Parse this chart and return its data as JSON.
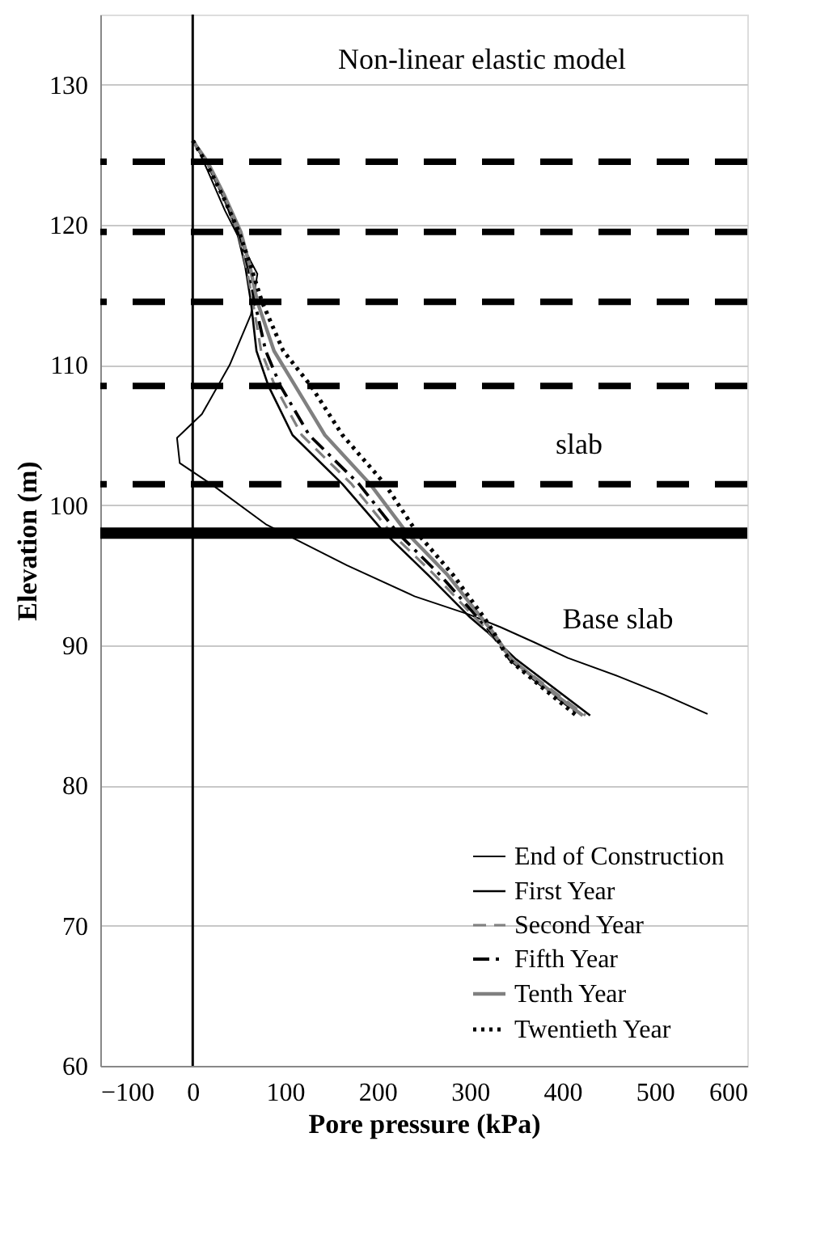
{
  "chart_data": {
    "type": "line",
    "xlabel": "Pore pressure (kPa)",
    "ylabel": "Elevation (m)",
    "annotations": [
      "Non-linear elastic model",
      "slab",
      "Base slab"
    ],
    "xlim": [
      -100,
      600
    ],
    "xticks": [
      -100,
      0,
      100,
      200,
      300,
      400,
      500,
      600
    ],
    "ylim": [
      60,
      135
    ],
    "yticks": [
      60,
      70,
      80,
      90,
      100,
      110,
      120,
      130
    ],
    "grid": "y",
    "legend": "bottom",
    "marker": "none",
    "ref_lines": [
      {
        "axis": "y",
        "value": 124.5,
        "color": "#000000",
        "line_style": "dashed"
      },
      {
        "axis": "y",
        "value": 119.5,
        "color": "#000000",
        "line_style": "dashed"
      },
      {
        "axis": "y",
        "value": 114.5,
        "color": "#000000",
        "line_style": "dashed"
      },
      {
        "axis": "y",
        "value": 108.5,
        "color": "#000000",
        "line_style": "dashed"
      },
      {
        "axis": "y",
        "value": 101.5,
        "color": "#000000",
        "line_style": "dashed"
      },
      {
        "axis": "y",
        "value": 98,
        "color": "#000000",
        "line_style": "solid"
      },
      {
        "axis": "x",
        "value": 0,
        "color": "#000000",
        "line_style": "solid"
      }
    ],
    "series": [
      {
        "name": "End of Construction",
        "color": "#000000",
        "line_style": "solid",
        "x": [
          2,
          35,
          62,
          70,
          63,
          40,
          10,
          -17,
          -14,
          20,
          80,
          167,
          240,
          299,
          333,
          370,
          406,
          460,
          509,
          557
        ],
        "values": [
          126,
          121,
          117.5,
          116.5,
          113.6,
          110,
          106.5,
          104.8,
          103,
          101.5,
          98.6,
          95.7,
          93.5,
          92.2,
          91.3,
          90.2,
          89.1,
          87.8,
          86.5,
          85.1
        ]
      },
      {
        "name": "First Year",
        "color": "#000000",
        "line_style": "solid",
        "x": [
          0,
          15,
          33,
          48,
          57,
          63,
          69,
          82,
          108,
          162,
          208,
          255,
          300,
          318,
          350,
          390,
          430
        ],
        "values": [
          126,
          124.5,
          122,
          119.5,
          117,
          114.5,
          111,
          108.5,
          105,
          101.5,
          98,
          95,
          92,
          91,
          89,
          87,
          85
        ]
      },
      {
        "name": "Second Year",
        "color": "#808080",
        "line_style": "dashed",
        "x": [
          0,
          15,
          33,
          49,
          58,
          65,
          74,
          89,
          118,
          172,
          215,
          262,
          305,
          320,
          345,
          385,
          425
        ],
        "values": [
          126,
          124.5,
          122,
          119.5,
          117,
          114.5,
          111,
          108.5,
          105,
          101.5,
          98,
          95,
          92,
          91,
          89,
          87,
          85
        ]
      },
      {
        "name": "Fifth Year",
        "color": "#000000",
        "line_style": "dashdot",
        "x": [
          0,
          15,
          34,
          50,
          60,
          67,
          79,
          95,
          126,
          180,
          222,
          268,
          308,
          322,
          343,
          380,
          420
        ],
        "values": [
          126,
          124.5,
          122,
          119.5,
          117,
          114.5,
          111,
          108.5,
          105,
          101.5,
          98,
          95,
          92,
          91,
          89,
          87,
          85
        ]
      },
      {
        "name": "Tenth Year",
        "color": "#808080",
        "line_style": "solid",
        "x": [
          0,
          16,
          35,
          52,
          62,
          70,
          88,
          111,
          143,
          192,
          232,
          276,
          312,
          324,
          345,
          382,
          422
        ],
        "values": [
          126,
          124.5,
          122,
          119.5,
          117,
          114.5,
          111,
          108.5,
          105,
          101.5,
          98,
          95,
          92,
          91,
          89,
          87,
          85
        ]
      },
      {
        "name": "Twentieth Year",
        "color": "#000000",
        "line_style": "dotted",
        "x": [
          0,
          14,
          33,
          50,
          63,
          75,
          98,
          128,
          162,
          208,
          243,
          282,
          315,
          325,
          342,
          378,
          415
        ],
        "values": [
          126,
          124.5,
          122,
          119.5,
          117,
          114.5,
          111,
          108.5,
          105,
          101.5,
          98,
          95,
          92,
          91,
          89,
          87,
          85
        ]
      }
    ]
  }
}
